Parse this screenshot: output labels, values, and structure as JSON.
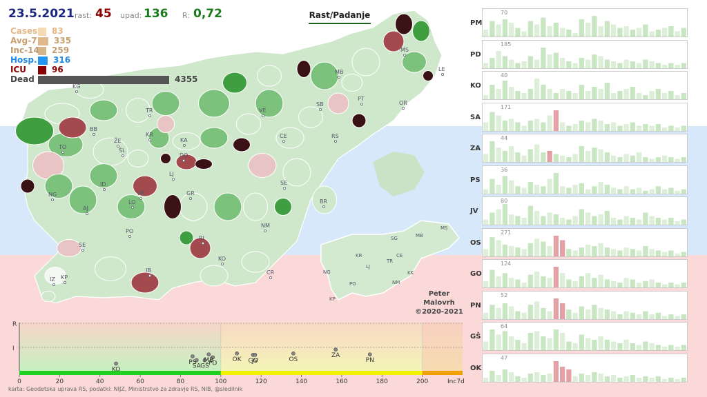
{
  "stats": {
    "date": "23.5.2021",
    "rast_label": "rast:",
    "rast_value": "45",
    "upad_label": "upad:",
    "upad_value": "136",
    "r_label": "R:",
    "r_value": "0,72"
  },
  "legend": [
    {
      "label": "Cases",
      "value": "83",
      "fraction": 0.019,
      "color": "#f7d9b2",
      "label_color": "#e6b887",
      "value_color": "#e6b887"
    },
    {
      "label": "Avg-7",
      "value": "335",
      "fraction": 0.077,
      "color": "#ddb98c",
      "label_color": "#c9a070",
      "value_color": "#c9a070"
    },
    {
      "label": "Inc-14",
      "value": "259",
      "fraction": 0.059,
      "color": "#d4b489",
      "label_color": "#c09b70",
      "value_color": "#c09b70"
    },
    {
      "label": "Hosp.",
      "value": "316",
      "fraction": 0.073,
      "color": "#2196f3",
      "label_color": "#1e88e5",
      "value_color": "#1e88e5"
    },
    {
      "label": "ICU",
      "value": "96",
      "fraction": 0.022,
      "color": "#8b0000",
      "label_color": "#8b0000",
      "value_color": "#8b0000"
    },
    {
      "label": "Dead",
      "value": "4355",
      "fraction": 1.0,
      "color": "#555555",
      "label_color": "#444",
      "value_color": "#444"
    }
  ],
  "toggle_button": "Rast/Padanje",
  "colors": {
    "grow_dark": "#3a1115",
    "grow_mid": "#a34a4f",
    "grow_light": "#e9c4c5",
    "fall_dark": "#3f9e3f",
    "fall_mid": "#7cc17c",
    "fall_light": "#cfe8cc",
    "neutral": "#f4f8f2"
  },
  "map_labels": [
    {
      "code": "KG"
    },
    {
      "code": "TR"
    },
    {
      "code": "VE"
    },
    {
      "code": "MB"
    },
    {
      "code": "MS"
    },
    {
      "code": "LE"
    },
    {
      "code": "PT"
    },
    {
      "code": "OR"
    },
    {
      "code": "SB"
    },
    {
      "code": "BB"
    },
    {
      "code": "ŽE"
    },
    {
      "code": "KR"
    },
    {
      "code": "KA"
    },
    {
      "code": "CE"
    },
    {
      "code": "RS"
    },
    {
      "code": "TO"
    },
    {
      "code": "ŠL"
    },
    {
      "code": "DO"
    },
    {
      "code": "LJ"
    },
    {
      "code": "SE"
    },
    {
      "code": "ID"
    },
    {
      "code": "VR"
    },
    {
      "code": "LO"
    },
    {
      "code": "GR"
    },
    {
      "code": "BR"
    },
    {
      "code": "NG"
    },
    {
      "code": "AJ"
    },
    {
      "code": "PO"
    },
    {
      "code": "NM"
    },
    {
      "code": "RI"
    },
    {
      "code": "KO"
    },
    {
      "code": "CR"
    },
    {
      "code": "SE"
    },
    {
      "code": "IB"
    },
    {
      "code": "IZ"
    },
    {
      "code": "KP"
    }
  ],
  "mini_map_labels": [
    {
      "code": "MS"
    },
    {
      "code": "SG"
    },
    {
      "code": "MB"
    },
    {
      "code": "KR"
    },
    {
      "code": "CE"
    },
    {
      "code": "TR"
    },
    {
      "code": "LJ"
    },
    {
      "code": "KK"
    },
    {
      "code": "NG"
    },
    {
      "code": "PO"
    },
    {
      "code": "NM"
    },
    {
      "code": "KP"
    }
  ],
  "credit": [
    "Peter",
    "Malovrh",
    "©2020-2021"
  ],
  "axis": {
    "y_labels": [
      "R",
      "I"
    ],
    "x_ticks": [
      "0",
      "20",
      "40",
      "60",
      "80",
      "100",
      "120",
      "140",
      "160",
      "180",
      "200"
    ],
    "x_end_label": "Inc7d",
    "x_min": 0,
    "x_max": 220,
    "points": [
      {
        "label": "KO",
        "inc7d": 48,
        "level": 0.15
      },
      {
        "label": "PS",
        "inc7d": 86,
        "level": 0.3
      },
      {
        "label": "SA",
        "inc7d": 88,
        "level": 0.22
      },
      {
        "label": "GŠ",
        "inc7d": 92,
        "level": 0.22
      },
      {
        "label": "PD",
        "inc7d": 96,
        "level": 0.28
      },
      {
        "label": "MB",
        "inc7d": 94,
        "level": 0.34
      },
      {
        "label": "OK",
        "inc7d": 108,
        "level": 0.36
      },
      {
        "label": "GO",
        "inc7d": 116,
        "level": 0.33
      },
      {
        "label": "JV",
        "inc7d": 117,
        "level": 0.33
      },
      {
        "label": "OS",
        "inc7d": 136,
        "level": 0.36
      },
      {
        "label": "ZA",
        "inc7d": 157,
        "level": 0.44
      },
      {
        "label": "PN",
        "inc7d": 174,
        "level": 0.34
      }
    ]
  },
  "source": "karta: Geodetska uprava RS,  podatki: NIJZ, Ministrstvo za zdravje RS, NIB, @sledilnik",
  "regions": [
    {
      "code": "PM",
      "max": "70",
      "values": [
        8,
        18,
        14,
        20,
        16,
        10,
        6,
        18,
        14,
        22,
        12,
        16,
        10,
        8,
        4,
        20,
        16,
        24,
        12,
        18,
        14,
        10,
        12,
        8,
        10,
        14,
        6,
        8,
        10,
        12,
        6,
        10
      ],
      "grow_at": []
    },
    {
      "code": "PD",
      "max": "185",
      "values": [
        6,
        12,
        20,
        14,
        10,
        6,
        8,
        14,
        10,
        24,
        16,
        18,
        12,
        8,
        6,
        12,
        10,
        16,
        14,
        10,
        8,
        6,
        10,
        8,
        6,
        10,
        8,
        6,
        4,
        6,
        4,
        6
      ],
      "grow_at": []
    },
    {
      "code": "KO",
      "max": "40",
      "values": [
        4,
        14,
        10,
        18,
        12,
        8,
        6,
        10,
        20,
        14,
        10,
        6,
        10,
        8,
        6,
        14,
        8,
        12,
        10,
        16,
        6,
        8,
        10,
        12,
        6,
        4,
        8,
        10,
        6,
        8,
        4,
        6
      ],
      "grow_at": []
    },
    {
      "code": "SA",
      "max": "171",
      "values": [
        10,
        22,
        18,
        12,
        14,
        10,
        6,
        12,
        14,
        10,
        18,
        24,
        10,
        6,
        8,
        12,
        10,
        14,
        12,
        8,
        10,
        6,
        8,
        10,
        6,
        8,
        6,
        8,
        4,
        6,
        4,
        6
      ],
      "grow_at": [
        11
      ]
    },
    {
      "code": "ZA",
      "max": "44",
      "values": [
        10,
        26,
        18,
        14,
        20,
        12,
        8,
        16,
        22,
        12,
        14,
        10,
        8,
        6,
        10,
        20,
        14,
        18,
        16,
        12,
        8,
        6,
        10,
        8,
        12,
        6,
        4,
        6,
        8,
        6,
        4,
        6
      ],
      "grow_at": [
        10
      ]
    },
    {
      "code": "PS",
      "max": "36",
      "values": [
        6,
        20,
        12,
        24,
        18,
        10,
        8,
        16,
        12,
        10,
        20,
        28,
        10,
        8,
        12,
        14,
        6,
        10,
        16,
        12,
        8,
        6,
        10,
        6,
        8,
        4,
        6,
        10,
        6,
        8,
        4,
        6
      ],
      "grow_at": []
    },
    {
      "code": "JV",
      "max": "80",
      "values": [
        6,
        14,
        18,
        24,
        12,
        10,
        8,
        22,
        16,
        10,
        14,
        12,
        8,
        6,
        10,
        18,
        14,
        10,
        12,
        16,
        8,
        6,
        10,
        8,
        6,
        14,
        10,
        8,
        6,
        8,
        4,
        6
      ],
      "grow_at": []
    },
    {
      "code": "OS",
      "max": "271",
      "values": [
        10,
        26,
        22,
        16,
        14,
        12,
        10,
        18,
        24,
        20,
        14,
        28,
        22,
        10,
        8,
        12,
        16,
        14,
        18,
        12,
        10,
        8,
        12,
        10,
        8,
        14,
        10,
        8,
        6,
        8,
        4,
        6
      ],
      "grow_at": [
        11,
        12
      ]
    },
    {
      "code": "GO",
      "max": "124",
      "values": [
        8,
        22,
        14,
        18,
        12,
        10,
        6,
        16,
        20,
        14,
        12,
        26,
        18,
        10,
        8,
        14,
        18,
        12,
        16,
        10,
        8,
        6,
        12,
        10,
        6,
        8,
        10,
        6,
        4,
        6,
        4,
        6
      ],
      "grow_at": [
        11
      ]
    },
    {
      "code": "PN",
      "max": "52",
      "values": [
        8,
        18,
        14,
        20,
        16,
        10,
        8,
        18,
        22,
        14,
        10,
        26,
        20,
        12,
        8,
        16,
        12,
        18,
        14,
        12,
        10,
        6,
        10,
        8,
        6,
        10,
        6,
        8,
        4,
        6,
        4,
        6
      ],
      "grow_at": [
        11,
        12
      ]
    },
    {
      "code": "GŠ",
      "max": "64",
      "values": [
        10,
        24,
        18,
        22,
        16,
        12,
        8,
        20,
        22,
        16,
        14,
        24,
        20,
        10,
        8,
        18,
        14,
        12,
        16,
        12,
        10,
        8,
        12,
        8,
        6,
        10,
        8,
        6,
        4,
        6,
        4,
        6
      ],
      "grow_at": []
    },
    {
      "code": "OK",
      "max": "47",
      "values": [
        6,
        16,
        10,
        18,
        14,
        8,
        6,
        12,
        14,
        10,
        12,
        30,
        22,
        18,
        8,
        12,
        10,
        14,
        12,
        8,
        10,
        6,
        8,
        10,
        6,
        8,
        6,
        8,
        4,
        6,
        4,
        6
      ],
      "grow_at": [
        11,
        12,
        13
      ]
    }
  ]
}
